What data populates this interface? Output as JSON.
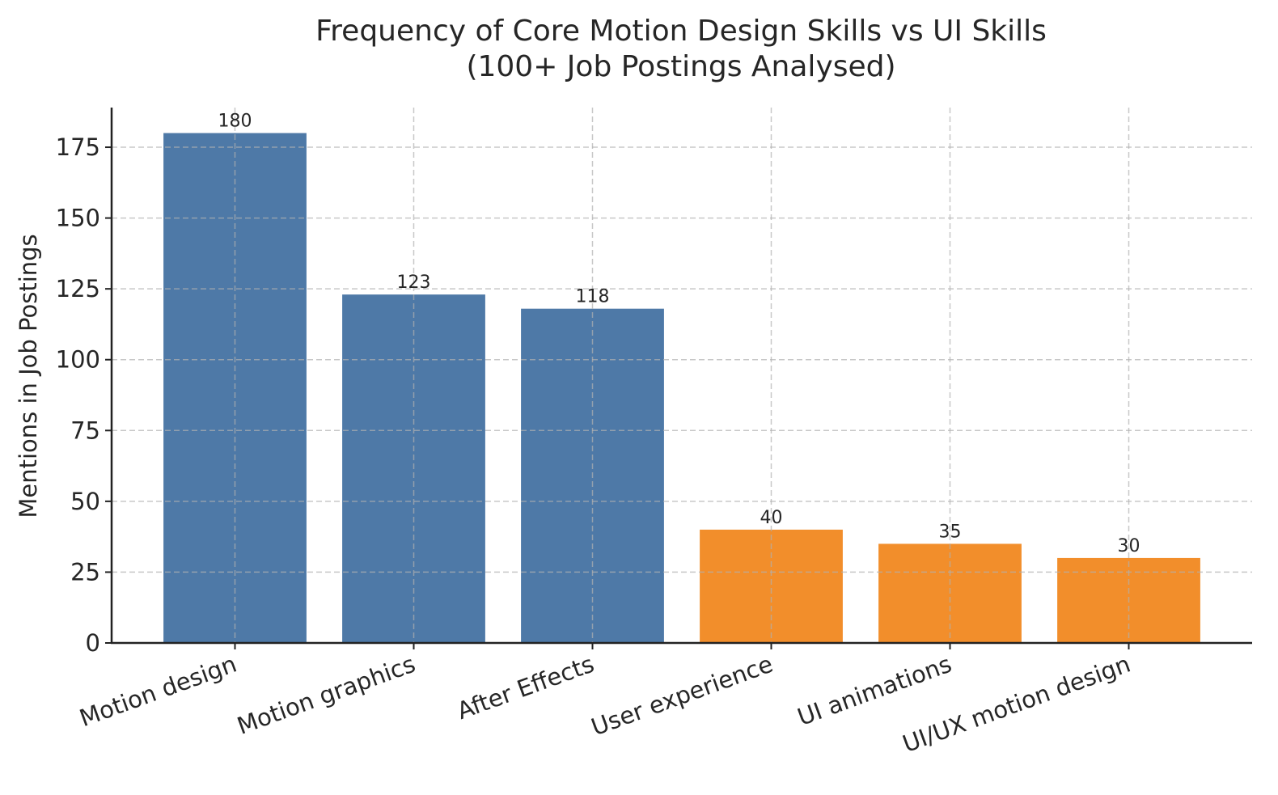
{
  "chart_data": {
    "type": "bar",
    "title": "Frequency of Core Motion Design Skills vs UI Skills",
    "subtitle": "(100+ Job Postings Analysed)",
    "xlabel": "",
    "ylabel": "Mentions in Job Postings",
    "categories": [
      "Motion design",
      "Motion graphics",
      "After Effects",
      "User experience",
      "UI animations",
      "UI/UX motion design"
    ],
    "values": [
      180,
      123,
      118,
      40,
      35,
      30
    ],
    "groups": [
      "core",
      "core",
      "core",
      "ui",
      "ui",
      "ui"
    ],
    "colors": {
      "core": "#4e79a7",
      "ui": "#f28e2b"
    },
    "ylim": [
      0,
      189
    ],
    "yticks": [
      0,
      25,
      50,
      75,
      100,
      125,
      150,
      175
    ],
    "grid": true,
    "data_labels": true,
    "xtick_rotation": 20
  }
}
